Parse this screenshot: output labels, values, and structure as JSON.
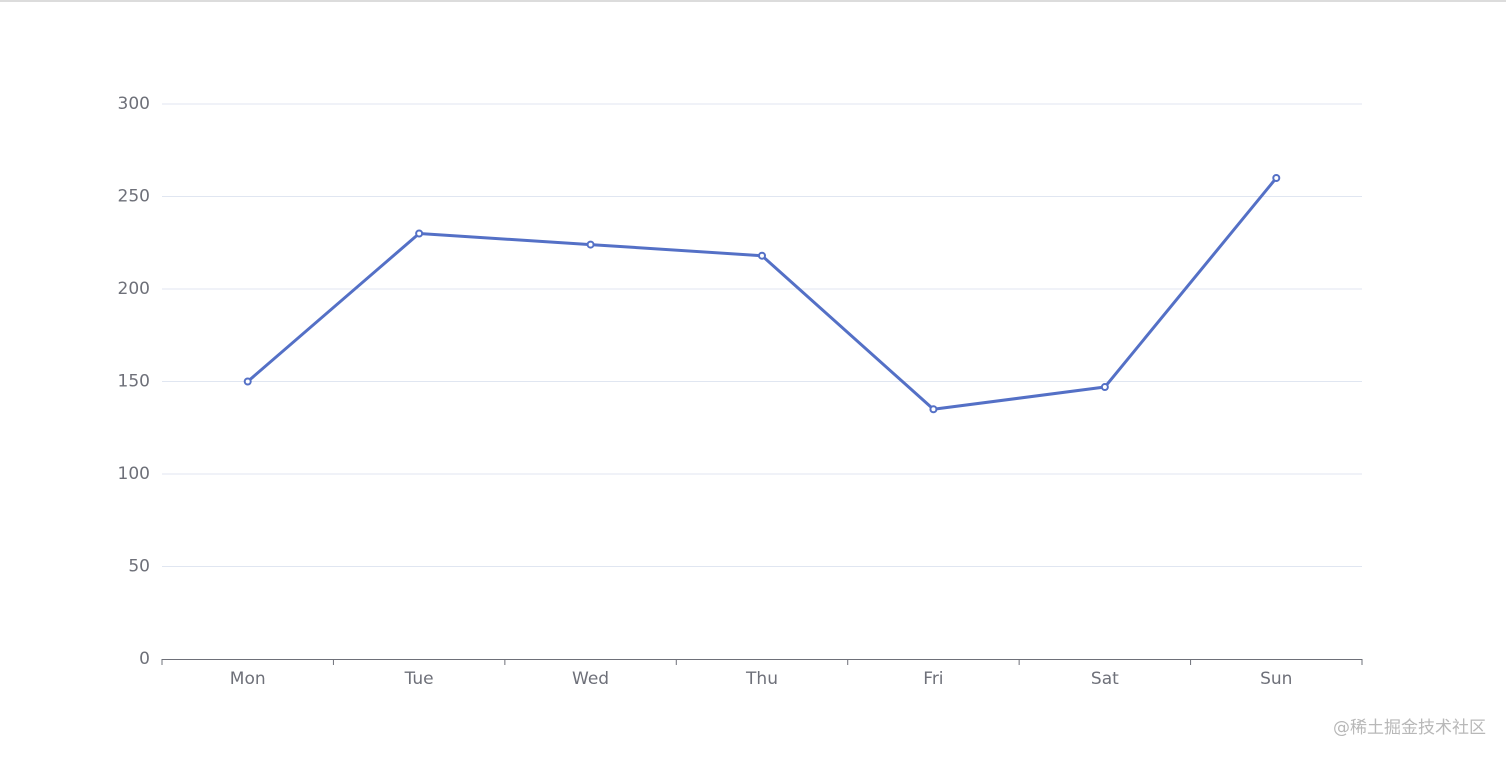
{
  "chart_data": {
    "type": "line",
    "categories": [
      "Mon",
      "Tue",
      "Wed",
      "Thu",
      "Fri",
      "Sat",
      "Sun"
    ],
    "series": [
      {
        "color": "#5470c6",
        "values": [
          150,
          230,
          224,
          218,
          135,
          147,
          260
        ]
      }
    ],
    "ylim": [
      0,
      300
    ],
    "yticks": [
      0,
      50,
      100,
      150,
      200,
      250,
      300
    ],
    "grid": true
  },
  "watermark": "@稀土掘金技术社区"
}
